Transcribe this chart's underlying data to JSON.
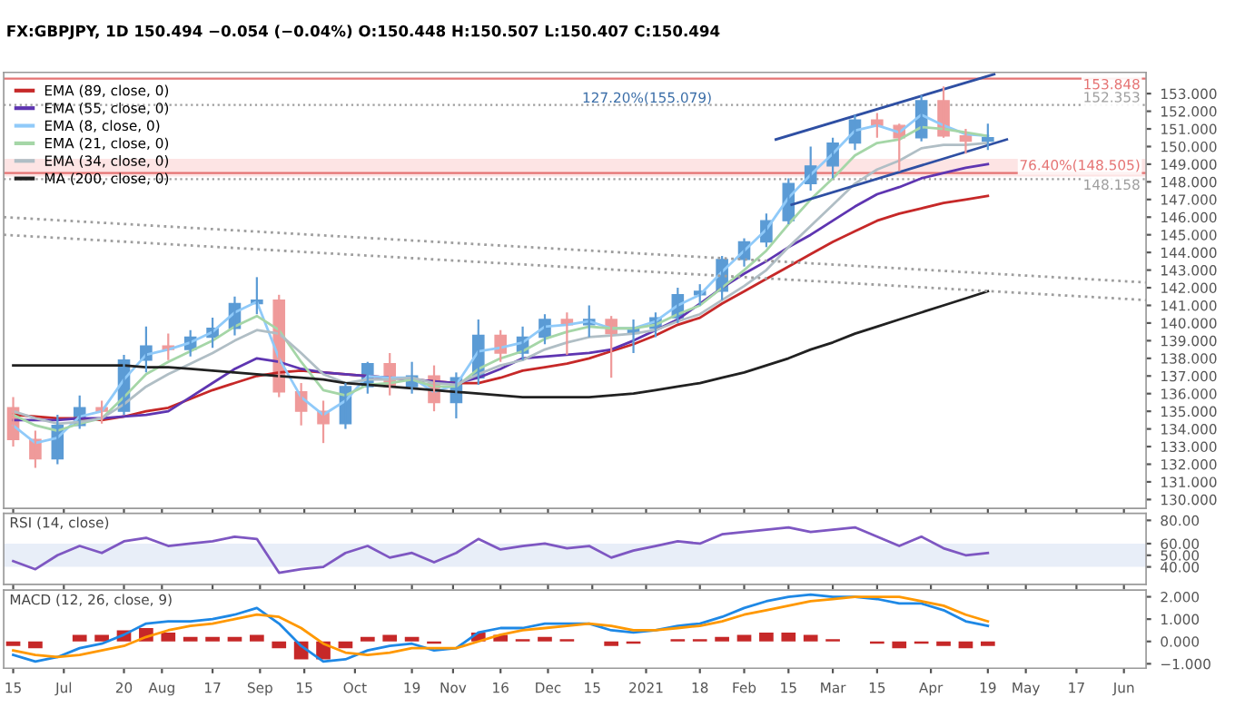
{
  "chart_data": [
    {
      "type": "candlestick",
      "title": "FX:GBPJPY, 1D 150.494 −0.054 (−0.04%) O:150.448 H:150.507 L:150.407 C:150.494",
      "x": [
        "2020-06-15",
        "2020-06-22",
        "2020-06-29",
        "2020-07-06",
        "2020-07-13",
        "2020-07-20",
        "2020-07-27",
        "2020-08-03",
        "2020-08-10",
        "2020-08-17",
        "2020-08-24",
        "2020-08-31",
        "2020-09-07",
        "2020-09-14",
        "2020-09-21",
        "2020-09-28",
        "2020-10-05",
        "2020-10-12",
        "2020-10-19",
        "2020-10-26",
        "2020-11-02",
        "2020-11-09",
        "2020-11-16",
        "2020-11-23",
        "2020-11-30",
        "2020-12-07",
        "2020-12-14",
        "2020-12-21",
        "2020-12-28",
        "2021-01-04",
        "2021-01-11",
        "2021-01-18",
        "2021-01-25",
        "2021-02-01",
        "2021-02-08",
        "2021-02-15",
        "2021-02-22",
        "2021-03-01",
        "2021-03-08",
        "2021-03-15",
        "2021-03-22",
        "2021-03-29",
        "2021-04-05",
        "2021-04-12",
        "2021-04-19"
      ],
      "ohlc": [
        [
          135.2,
          135.8,
          133.0,
          133.4
        ],
        [
          133.4,
          133.9,
          131.8,
          132.3
        ],
        [
          132.3,
          134.8,
          132.0,
          134.2
        ],
        [
          134.2,
          135.9,
          134.0,
          135.2
        ],
        [
          135.2,
          135.6,
          134.3,
          135.0
        ],
        [
          135.0,
          138.2,
          134.8,
          137.9
        ],
        [
          137.9,
          139.8,
          137.2,
          138.7
        ],
        [
          138.7,
          139.4,
          137.9,
          138.5
        ],
        [
          138.5,
          139.6,
          138.1,
          139.2
        ],
        [
          139.2,
          140.3,
          138.6,
          139.7
        ],
        [
          139.7,
          141.5,
          139.3,
          141.1
        ],
        [
          141.1,
          142.6,
          140.5,
          141.3
        ],
        [
          141.3,
          141.6,
          135.8,
          136.1
        ],
        [
          136.1,
          136.6,
          134.2,
          135.0
        ],
        [
          135.0,
          135.6,
          133.2,
          134.3
        ],
        [
          134.3,
          136.6,
          134.0,
          136.4
        ],
        [
          136.4,
          137.8,
          136.0,
          137.7
        ],
        [
          137.7,
          138.3,
          135.9,
          136.4
        ],
        [
          136.4,
          137.8,
          136.0,
          137.0
        ],
        [
          137.0,
          137.6,
          135.0,
          135.5
        ],
        [
          135.5,
          137.2,
          134.6,
          136.9
        ],
        [
          136.9,
          140.2,
          136.5,
          139.3
        ],
        [
          139.3,
          139.6,
          137.8,
          138.3
        ],
        [
          138.3,
          139.8,
          137.9,
          139.2
        ],
        [
          139.2,
          140.5,
          138.8,
          140.2
        ],
        [
          140.2,
          140.6,
          138.2,
          139.9
        ],
        [
          139.9,
          141.0,
          139.2,
          140.2
        ],
        [
          140.2,
          140.4,
          136.9,
          139.4
        ],
        [
          139.4,
          140.2,
          138.3,
          139.7
        ],
        [
          139.7,
          140.6,
          139.2,
          140.3
        ],
        [
          140.3,
          142.0,
          140.0,
          141.6
        ],
        [
          141.6,
          142.2,
          141.0,
          141.8
        ],
        [
          141.8,
          143.8,
          141.3,
          143.6
        ],
        [
          143.6,
          144.8,
          143.2,
          144.6
        ],
        [
          144.6,
          146.2,
          144.3,
          145.8
        ],
        [
          145.8,
          148.2,
          145.6,
          147.9
        ],
        [
          147.9,
          150.0,
          147.5,
          148.9
        ],
        [
          148.9,
          150.5,
          148.2,
          150.2
        ],
        [
          150.2,
          151.8,
          149.8,
          151.5
        ],
        [
          151.5,
          151.9,
          150.5,
          151.2
        ],
        [
          151.2,
          151.3,
          148.6,
          150.5
        ],
        [
          150.5,
          152.9,
          150.3,
          152.6
        ],
        [
          152.6,
          153.4,
          150.5,
          150.6
        ],
        [
          150.6,
          151.0,
          149.6,
          150.3
        ],
        [
          150.3,
          151.3,
          149.8,
          150.5
        ]
      ],
      "colors": [
        "#ef9a9a",
        "#ef9a9a",
        "#5b9bd5",
        "#5b9bd5",
        "#ef9a9a",
        "#5b9bd5",
        "#5b9bd5",
        "#ef9a9a",
        "#5b9bd5",
        "#5b9bd5",
        "#5b9bd5",
        "#5b9bd5",
        "#ef9a9a",
        "#ef9a9a",
        "#ef9a9a",
        "#5b9bd5",
        "#5b9bd5",
        "#ef9a9a",
        "#5b9bd5",
        "#ef9a9a",
        "#5b9bd5",
        "#5b9bd5",
        "#ef9a9a",
        "#5b9bd5",
        "#5b9bd5",
        "#ef9a9a",
        "#5b9bd5",
        "#ef9a9a",
        "#5b9bd5",
        "#5b9bd5",
        "#5b9bd5",
        "#5b9bd5",
        "#5b9bd5",
        "#5b9bd5",
        "#5b9bd5",
        "#5b9bd5",
        "#5b9bd5",
        "#5b9bd5",
        "#5b9bd5",
        "#ef9a9a",
        "#ef9a9a",
        "#5b9bd5",
        "#ef9a9a",
        "#ef9a9a",
        "#5b9bd5"
      ],
      "series": [
        {
          "type": "line",
          "name": "EMA (89, close, 0)",
          "color": "#c62828",
          "values": [
            134.8,
            134.7,
            134.6,
            134.6,
            134.5,
            134.7,
            135.0,
            135.2,
            135.7,
            136.2,
            136.6,
            137.0,
            137.2,
            137.3,
            137.2,
            137.1,
            137.0,
            136.9,
            136.8,
            136.7,
            136.6,
            136.6,
            136.9,
            137.3,
            137.5,
            137.7,
            138.0,
            138.4,
            138.8,
            139.3,
            139.9,
            140.3,
            141.1,
            141.8,
            142.5,
            143.2,
            143.9,
            144.6,
            145.2,
            145.8,
            146.2,
            146.5,
            146.8,
            147.0,
            147.2
          ]
        },
        {
          "type": "line",
          "name": "EMA (55, close, 0)",
          "color": "#5e35b1",
          "values": [
            134.5,
            134.5,
            134.5,
            134.6,
            134.6,
            134.7,
            134.8,
            135.0,
            135.8,
            136.6,
            137.4,
            138.0,
            137.8,
            137.4,
            137.2,
            137.1,
            137.0,
            136.9,
            136.8,
            136.7,
            136.6,
            136.9,
            137.4,
            138.0,
            138.1,
            138.2,
            138.3,
            138.5,
            139.0,
            139.6,
            140.2,
            141.1,
            142.0,
            142.8,
            143.5,
            144.3,
            145.0,
            145.8,
            146.6,
            147.3,
            147.7,
            148.2,
            148.5,
            148.8,
            149.0
          ]
        },
        {
          "type": "line",
          "name": "EMA (8, close, 0)",
          "color": "#90caf9",
          "values": [
            134.2,
            133.2,
            133.5,
            134.7,
            135.0,
            136.8,
            138.2,
            138.5,
            138.9,
            139.5,
            140.6,
            141.2,
            138.0,
            135.8,
            134.8,
            135.6,
            137.0,
            136.9,
            136.9,
            136.1,
            136.5,
            138.4,
            138.6,
            138.9,
            139.8,
            139.9,
            140.1,
            139.7,
            139.7,
            140.1,
            141.0,
            141.6,
            142.9,
            144.1,
            145.3,
            147.1,
            148.4,
            149.6,
            150.9,
            151.2,
            150.8,
            151.8,
            151.2,
            150.7,
            150.6
          ]
        },
        {
          "type": "line",
          "name": "EMA (21, close, 0)",
          "color": "#a5d6a7",
          "values": [
            134.8,
            134.2,
            133.9,
            134.3,
            134.6,
            135.8,
            137.1,
            137.8,
            138.4,
            139.0,
            139.8,
            140.4,
            139.6,
            137.8,
            136.2,
            135.9,
            136.5,
            136.6,
            136.8,
            136.4,
            136.4,
            137.4,
            138.0,
            138.4,
            139.1,
            139.5,
            139.8,
            139.7,
            139.7,
            139.9,
            140.5,
            141.0,
            142.0,
            143.0,
            144.1,
            145.6,
            147.0,
            148.2,
            149.5,
            150.2,
            150.4,
            151.1,
            151.0,
            150.8,
            150.6
          ]
        },
        {
          "type": "line",
          "name": "EMA (34, close, 0)",
          "color": "#b0bec5",
          "values": [
            135.0,
            134.6,
            134.3,
            134.4,
            134.6,
            135.4,
            136.4,
            137.1,
            137.7,
            138.3,
            139.0,
            139.6,
            139.4,
            138.3,
            137.1,
            136.6,
            136.8,
            136.8,
            136.9,
            136.6,
            136.5,
            137.1,
            137.6,
            137.9,
            138.5,
            138.9,
            139.2,
            139.3,
            139.4,
            139.6,
            140.1,
            140.5,
            141.3,
            142.1,
            143.0,
            144.3,
            145.5,
            146.7,
            147.9,
            148.7,
            149.2,
            149.9,
            150.1,
            150.1,
            150.2
          ]
        },
        {
          "type": "line",
          "name": "MA (200, close, 0)",
          "color": "#212121",
          "values": [
            137.6,
            137.6,
            137.6,
            137.6,
            137.6,
            137.6,
            137.5,
            137.5,
            137.4,
            137.3,
            137.2,
            137.1,
            137.0,
            136.9,
            136.8,
            136.6,
            136.5,
            136.4,
            136.3,
            136.2,
            136.1,
            136.0,
            135.9,
            135.8,
            135.8,
            135.8,
            135.8,
            135.9,
            136.0,
            136.2,
            136.4,
            136.6,
            136.9,
            137.2,
            137.6,
            138.0,
            138.5,
            138.9,
            139.4,
            139.8,
            140.2,
            140.6,
            141.0,
            141.4,
            141.8
          ]
        },
        {
          "type": "line",
          "color": "#2e4fa3",
          "x": [
            "2021-02-11",
            "2021-04-21"
          ],
          "values": [
            150.4,
            154.1
          ]
        },
        {
          "type": "line",
          "color": "#2e4fa3",
          "x": [
            "2021-02-16",
            "2021-04-25"
          ],
          "values": [
            146.7,
            150.4
          ]
        },
        {
          "type": "line",
          "color": "#9e9e9e",
          "line_style": "dotted",
          "x": [
            "2020-06-12",
            "2021-06-08"
          ],
          "values": [
            146.0,
            142.3
          ]
        },
        {
          "type": "line",
          "color": "#9e9e9e",
          "line_style": "dotted",
          "x": [
            "2020-06-12",
            "2021-06-08"
          ],
          "values": [
            145.0,
            141.3
          ]
        }
      ],
      "ref_lines": [
        {
          "axis": "y",
          "value": 153.848,
          "label": "153.848",
          "color": "#e57373"
        },
        {
          "axis": "y",
          "value": 152.353,
          "label": "152.353",
          "color": "#9e9e9e",
          "line_style": "dotted"
        },
        {
          "axis": "y",
          "value": 148.158,
          "label": "148.158",
          "color": "#9e9e9e",
          "line_style": "dotted"
        },
        {
          "axis": "y",
          "value": 148.505,
          "label": "76.40%(148.505)",
          "color": "#e57373"
        }
      ],
      "bands": [
        {
          "axis": "y",
          "from": 148.3,
          "to": 149.3,
          "color": "#fde4e4"
        }
      ],
      "annotations": [
        "127.20%(155.079)"
      ],
      "xlim": [
        "2020-06-12",
        "2021-06-08"
      ],
      "ylim": [
        129.5,
        154.2
      ],
      "yticks": [
        {
          "value": 130,
          "label": "130.000"
        },
        {
          "value": 131,
          "label": "131.000"
        },
        {
          "value": 132,
          "label": "132.000"
        },
        {
          "value": 133,
          "label": "133.000"
        },
        {
          "value": 134,
          "label": "134.000"
        },
        {
          "value": 135,
          "label": "135.000"
        },
        {
          "value": 136,
          "label": "136.000"
        },
        {
          "value": 137,
          "label": "137.000"
        },
        {
          "value": 138,
          "label": "138.000"
        },
        {
          "value": 139,
          "label": "139.000"
        },
        {
          "value": 140,
          "label": "140.000"
        },
        {
          "value": 141,
          "label": "141.000"
        },
        {
          "value": 142,
          "label": "142.000"
        },
        {
          "value": 143,
          "label": "143.000"
        },
        {
          "value": 144,
          "label": "144.000"
        },
        {
          "value": 145,
          "label": "145.000"
        },
        {
          "value": 146,
          "label": "146.000"
        },
        {
          "value": 147,
          "label": "147.000"
        },
        {
          "value": 148,
          "label": "148.000"
        },
        {
          "value": 149,
          "label": "149.000"
        },
        {
          "value": 150,
          "label": "150.000"
        },
        {
          "value": 151,
          "label": "151.000"
        },
        {
          "value": 152,
          "label": "152.000"
        },
        {
          "value": 153,
          "label": "153.000"
        }
      ],
      "legend": "top left",
      "tick_labels": "y"
    },
    {
      "type": "line",
      "title": "RSI (14, close)",
      "x": [
        "2020-06-15",
        "2020-06-22",
        "2020-06-29",
        "2020-07-06",
        "2020-07-13",
        "2020-07-20",
        "2020-07-27",
        "2020-08-03",
        "2020-08-10",
        "2020-08-17",
        "2020-08-24",
        "2020-08-31",
        "2020-09-07",
        "2020-09-14",
        "2020-09-21",
        "2020-09-28",
        "2020-10-05",
        "2020-10-12",
        "2020-10-19",
        "2020-10-26",
        "2020-11-02",
        "2020-11-09",
        "2020-11-16",
        "2020-11-23",
        "2020-11-30",
        "2020-12-07",
        "2020-12-14",
        "2020-12-21",
        "2020-12-28",
        "2021-01-04",
        "2021-01-11",
        "2021-01-18",
        "2021-01-25",
        "2021-02-01",
        "2021-02-08",
        "2021-02-15",
        "2021-02-22",
        "2021-03-01",
        "2021-03-08",
        "2021-03-15",
        "2021-03-22",
        "2021-03-29",
        "2021-04-05",
        "2021-04-12",
        "2021-04-19"
      ],
      "series": [
        {
          "color": "#7e57c2",
          "values": [
            45,
            38,
            50,
            58,
            52,
            62,
            65,
            58,
            60,
            62,
            66,
            64,
            35,
            38,
            40,
            52,
            58,
            48,
            52,
            44,
            52,
            64,
            55,
            58,
            60,
            56,
            58,
            48,
            54,
            58,
            62,
            60,
            68,
            70,
            72,
            74,
            70,
            72,
            74,
            66,
            58,
            66,
            56,
            50,
            52
          ]
        }
      ],
      "bands": [
        {
          "axis": "y",
          "from": 40,
          "to": 60,
          "color": "#e8eef8"
        }
      ],
      "xlim": [
        "2020-06-12",
        "2021-06-08"
      ],
      "ylim": [
        25,
        86
      ],
      "yticks": [
        {
          "value": 40,
          "label": "40.00"
        },
        {
          "value": 50,
          "label": "50.00"
        },
        {
          "value": 60,
          "label": "60.00"
        },
        {
          "value": 80,
          "label": "80.00"
        }
      ],
      "tick_labels": "y"
    },
    {
      "type": "bar",
      "title": "MACD (12, 26, close, 9)",
      "x": [
        "2020-06-15",
        "2020-06-22",
        "2020-06-29",
        "2020-07-06",
        "2020-07-13",
        "2020-07-20",
        "2020-07-27",
        "2020-08-03",
        "2020-08-10",
        "2020-08-17",
        "2020-08-24",
        "2020-08-31",
        "2020-09-07",
        "2020-09-14",
        "2020-09-21",
        "2020-09-28",
        "2020-10-05",
        "2020-10-12",
        "2020-10-19",
        "2020-10-26",
        "2020-11-02",
        "2020-11-09",
        "2020-11-16",
        "2020-11-23",
        "2020-11-30",
        "2020-12-07",
        "2020-12-14",
        "2020-12-21",
        "2020-12-28",
        "2021-01-04",
        "2021-01-11",
        "2021-01-18",
        "2021-01-25",
        "2021-02-01",
        "2021-02-08",
        "2021-02-15",
        "2021-02-22",
        "2021-03-01",
        "2021-03-08",
        "2021-03-15",
        "2021-03-22",
        "2021-03-29",
        "2021-04-05",
        "2021-04-12",
        "2021-04-19"
      ],
      "series": [
        {
          "type": "bar",
          "color": "#c62828",
          "values": [
            -0.2,
            -0.3,
            0,
            0.3,
            0.3,
            0.5,
            0.6,
            0.4,
            0.2,
            0.2,
            0.2,
            0.3,
            -0.3,
            -0.8,
            -0.8,
            -0.3,
            0.2,
            0.3,
            0.2,
            -0.1,
            0,
            0.4,
            0.3,
            0.1,
            0.2,
            0.1,
            0,
            -0.2,
            -0.1,
            0,
            0.1,
            0.1,
            0.2,
            0.3,
            0.4,
            0.4,
            0.3,
            0.1,
            0,
            -0.1,
            -0.3,
            -0.1,
            -0.2,
            -0.3,
            -0.2
          ]
        },
        {
          "type": "line",
          "color": "#1e88e5",
          "values": [
            -0.6,
            -0.9,
            -0.7,
            -0.3,
            -0.1,
            0.3,
            0.8,
            0.9,
            0.9,
            1.0,
            1.2,
            1.5,
            0.8,
            -0.2,
            -0.9,
            -0.8,
            -0.4,
            -0.2,
            -0.1,
            -0.4,
            -0.3,
            0.4,
            0.6,
            0.6,
            0.8,
            0.8,
            0.8,
            0.5,
            0.4,
            0.5,
            0.7,
            0.8,
            1.1,
            1.5,
            1.8,
            2.0,
            2.1,
            2.0,
            2.0,
            1.9,
            1.7,
            1.7,
            1.4,
            0.9,
            0.7
          ]
        },
        {
          "type": "line",
          "color": "#ff9800",
          "values": [
            -0.4,
            -0.6,
            -0.7,
            -0.6,
            -0.4,
            -0.2,
            0.2,
            0.5,
            0.7,
            0.8,
            1.0,
            1.2,
            1.1,
            0.6,
            -0.1,
            -0.5,
            -0.6,
            -0.5,
            -0.3,
            -0.3,
            -0.3,
            0.0,
            0.3,
            0.5,
            0.6,
            0.7,
            0.8,
            0.7,
            0.5,
            0.5,
            0.6,
            0.7,
            0.9,
            1.2,
            1.4,
            1.6,
            1.8,
            1.9,
            2.0,
            2.0,
            2.0,
            1.8,
            1.6,
            1.2,
            0.9
          ]
        }
      ],
      "xlim": [
        "2020-06-12",
        "2021-06-08"
      ],
      "ylim": [
        -1.2,
        2.3
      ],
      "yticks": [
        {
          "value": -1,
          "label": "−1.000"
        },
        {
          "value": 0,
          "label": "0.000"
        },
        {
          "value": 1,
          "label": "1.000"
        },
        {
          "value": 2,
          "label": "2.000"
        }
      ],
      "xticks": [
        {
          "value": "2020-06-15",
          "label": "15"
        },
        {
          "value": "2020-07-01",
          "label": "Jul"
        },
        {
          "value": "2020-07-20",
          "label": "20"
        },
        {
          "value": "2020-08-01",
          "label": "Aug"
        },
        {
          "value": "2020-08-17",
          "label": "17"
        },
        {
          "value": "2020-09-01",
          "label": "Sep"
        },
        {
          "value": "2020-09-15",
          "label": "15"
        },
        {
          "value": "2020-10-01",
          "label": "Oct"
        },
        {
          "value": "2020-10-19",
          "label": "19"
        },
        {
          "value": "2020-11-01",
          "label": "Nov"
        },
        {
          "value": "2020-11-16",
          "label": "16"
        },
        {
          "value": "2020-12-01",
          "label": "Dec"
        },
        {
          "value": "2020-12-15",
          "label": "15"
        },
        {
          "value": "2021-01-01",
          "label": "2021"
        },
        {
          "value": "2021-01-18",
          "label": "18"
        },
        {
          "value": "2021-02-01",
          "label": "Feb"
        },
        {
          "value": "2021-02-15",
          "label": "15"
        },
        {
          "value": "2021-03-01",
          "label": "Mar"
        },
        {
          "value": "2021-03-15",
          "label": "15"
        },
        {
          "value": "2021-04-01",
          "label": "Apr"
        },
        {
          "value": "2021-04-19",
          "label": "19"
        },
        {
          "value": "2021-05-01",
          "label": "May"
        },
        {
          "value": "2021-05-17",
          "label": "17"
        },
        {
          "value": "2021-06-01",
          "label": "Jun"
        }
      ]
    }
  ]
}
